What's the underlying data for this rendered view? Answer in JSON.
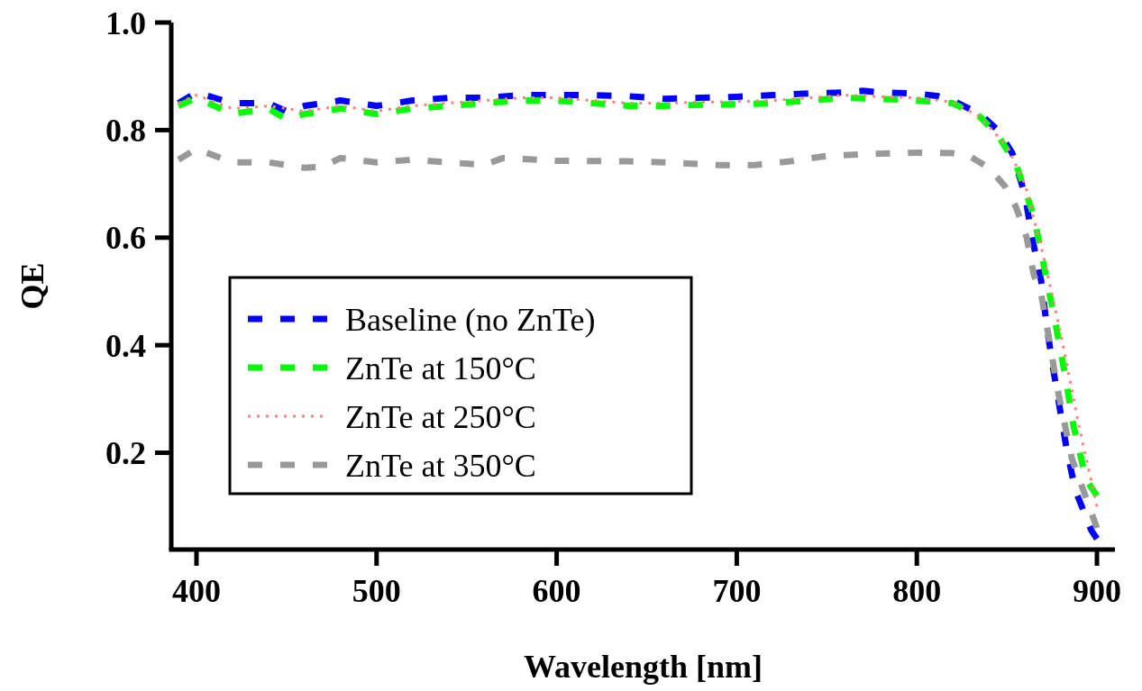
{
  "chart_data": {
    "type": "line",
    "xlabel": "Wavelength [nm]",
    "ylabel": "QE",
    "xlim": [
      386,
      910
    ],
    "ylim": [
      0.02,
      1.0
    ],
    "xticks": [
      400,
      500,
      600,
      700,
      800,
      900
    ],
    "yticks": [
      0.2,
      0.4,
      0.6,
      0.8,
      {
        "value": 1.0,
        "label": "1.0"
      }
    ],
    "legend": "left",
    "grid": false,
    "series": [
      {
        "name": "Baseline (no ZnTe)",
        "color": "#0000ff",
        "line_style": "dashed",
        "x": [
          390,
          400,
          420,
          440,
          450,
          460,
          480,
          500,
          520,
          540,
          560,
          580,
          600,
          620,
          640,
          660,
          680,
          700,
          720,
          740,
          760,
          770,
          780,
          800,
          812,
          820,
          835,
          845,
          853,
          860,
          864,
          869,
          872,
          875,
          879,
          883,
          888,
          897,
          900
        ],
        "values": [
          0.85,
          0.87,
          0.85,
          0.85,
          0.835,
          0.845,
          0.855,
          0.845,
          0.855,
          0.86,
          0.86,
          0.865,
          0.865,
          0.865,
          0.863,
          0.858,
          0.86,
          0.862,
          0.865,
          0.868,
          0.87,
          0.873,
          0.87,
          0.868,
          0.863,
          0.855,
          0.83,
          0.8,
          0.757,
          0.68,
          0.6,
          0.52,
          0.44,
          0.37,
          0.29,
          0.21,
          0.13,
          0.055,
          0.04
        ]
      },
      {
        "name": "ZnTe at 150°C",
        "color": "#00ff00",
        "line_style": "dashed",
        "x": [
          390,
          400,
          420,
          440,
          450,
          460,
          480,
          500,
          520,
          540,
          560,
          580,
          600,
          620,
          640,
          660,
          680,
          700,
          720,
          740,
          760,
          780,
          800,
          820,
          835,
          845,
          855,
          865,
          871,
          877,
          882,
          887,
          894,
          900
        ],
        "values": [
          0.845,
          0.86,
          0.83,
          0.84,
          0.82,
          0.83,
          0.84,
          0.83,
          0.84,
          0.845,
          0.85,
          0.855,
          0.855,
          0.85,
          0.845,
          0.845,
          0.847,
          0.848,
          0.85,
          0.855,
          0.86,
          0.858,
          0.855,
          0.85,
          0.825,
          0.79,
          0.737,
          0.64,
          0.54,
          0.44,
          0.35,
          0.25,
          0.15,
          0.12
        ]
      },
      {
        "name": "ZnTe at 250°C",
        "color": "#ff8080",
        "line_style": "dotted",
        "x": [
          390,
          400,
          420,
          440,
          460,
          480,
          500,
          520,
          540,
          560,
          580,
          600,
          620,
          640,
          660,
          680,
          700,
          720,
          740,
          760,
          780,
          800,
          820,
          835,
          850,
          860,
          870,
          880,
          890,
          900
        ],
        "values": [
          0.85,
          0.865,
          0.84,
          0.845,
          0.835,
          0.845,
          0.835,
          0.845,
          0.85,
          0.855,
          0.86,
          0.86,
          0.855,
          0.85,
          0.85,
          0.852,
          0.853,
          0.855,
          0.86,
          0.865,
          0.862,
          0.86,
          0.852,
          0.825,
          0.77,
          0.7,
          0.57,
          0.42,
          0.25,
          0.1
        ]
      },
      {
        "name": "ZnTe at 350°C",
        "color": "#999999",
        "line_style": "dashed",
        "x": [
          390,
          400,
          420,
          440,
          460,
          470,
          480,
          500,
          520,
          540,
          560,
          570,
          600,
          640,
          660,
          690,
          710,
          730,
          750,
          770,
          800,
          820,
          830,
          840,
          849,
          855,
          858,
          861,
          865,
          869,
          873,
          878,
          886,
          900
        ],
        "values": [
          0.745,
          0.765,
          0.74,
          0.74,
          0.73,
          0.732,
          0.748,
          0.74,
          0.745,
          0.74,
          0.735,
          0.748,
          0.743,
          0.742,
          0.74,
          0.735,
          0.735,
          0.742,
          0.752,
          0.755,
          0.758,
          0.757,
          0.75,
          0.73,
          0.695,
          0.657,
          0.63,
          0.6,
          0.53,
          0.495,
          0.42,
          0.32,
          0.19,
          0.06
        ]
      }
    ]
  }
}
